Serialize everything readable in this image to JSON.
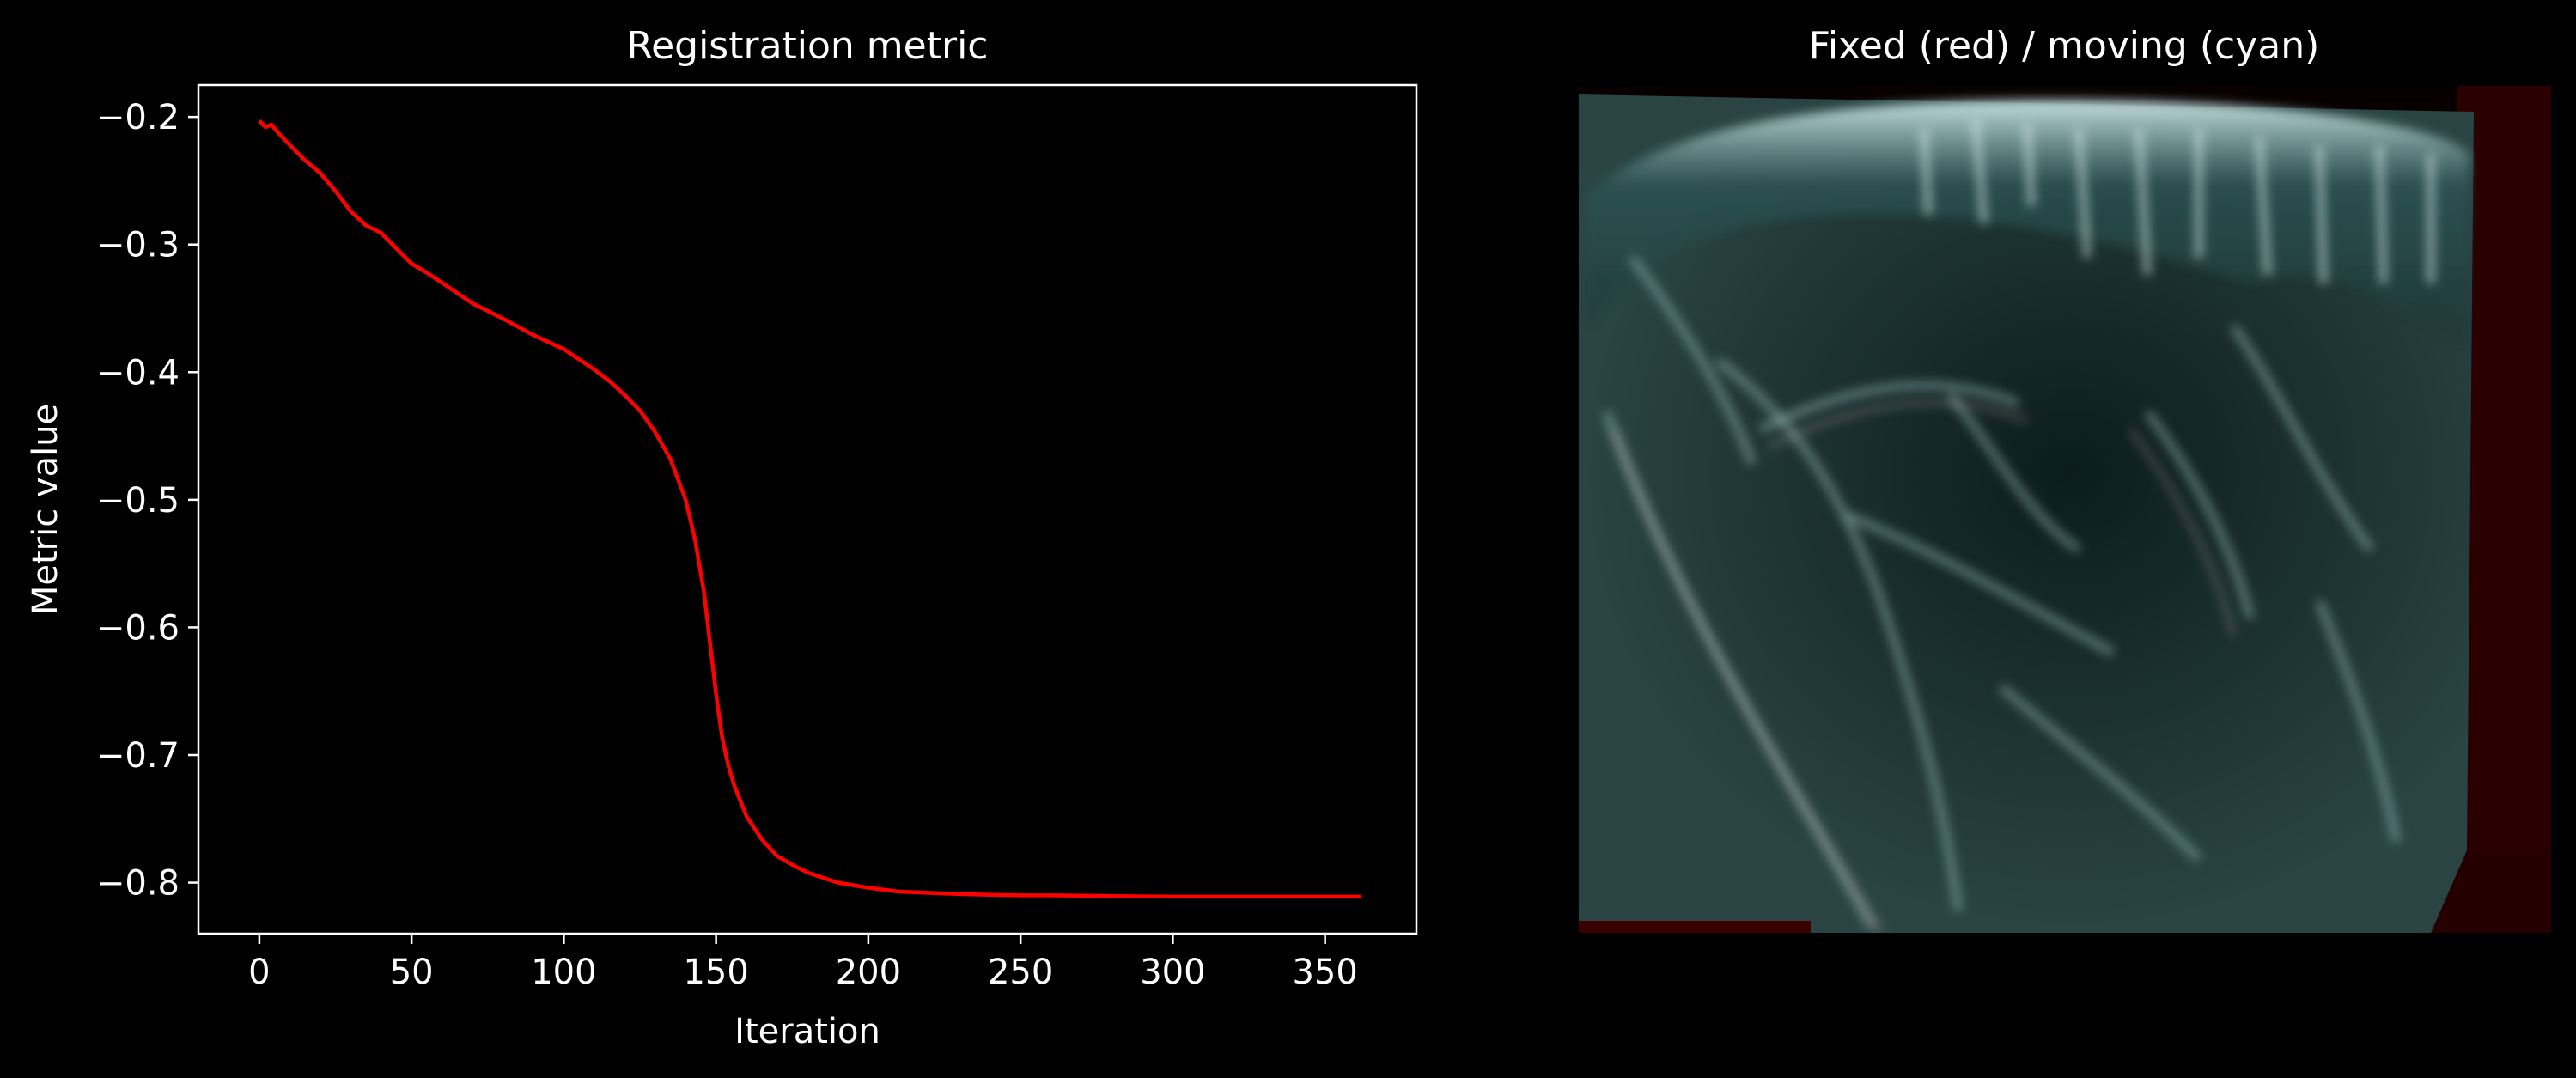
{
  "chart_data": [
    {
      "type": "line",
      "title": "Registration metric",
      "xlabel": "Iteration",
      "ylabel": "Metric value",
      "xlim": [
        -20,
        380
      ],
      "ylim": [
        -0.84,
        -0.175
      ],
      "x_ticks": [
        0,
        50,
        100,
        150,
        200,
        250,
        300,
        350
      ],
      "y_ticks": [
        -0.2,
        -0.3,
        -0.4,
        -0.5,
        -0.6,
        -0.7,
        -0.8
      ],
      "grid": false,
      "legend": "none",
      "series": [
        {
          "color": "#ff0000",
          "x": [
            0,
            2,
            4,
            6,
            10,
            15,
            20,
            25,
            30,
            35,
            40,
            45,
            50,
            55,
            60,
            70,
            80,
            90,
            100,
            110,
            115,
            120,
            125,
            130,
            135,
            140,
            143,
            146,
            148,
            150,
            152,
            154,
            156,
            158,
            160,
            165,
            170,
            175,
            180,
            190,
            200,
            210,
            220,
            230,
            240,
            250,
            260,
            280,
            300,
            320,
            340,
            362
          ],
          "y": [
            -0.203,
            -0.208,
            -0.206,
            -0.212,
            -0.222,
            -0.234,
            -0.244,
            -0.258,
            -0.274,
            -0.285,
            -0.291,
            -0.303,
            -0.315,
            -0.322,
            -0.33,
            -0.346,
            -0.358,
            -0.371,
            -0.382,
            -0.398,
            -0.407,
            -0.418,
            -0.43,
            -0.447,
            -0.468,
            -0.5,
            -0.53,
            -0.572,
            -0.612,
            -0.652,
            -0.686,
            -0.708,
            -0.724,
            -0.736,
            -0.748,
            -0.766,
            -0.779,
            -0.786,
            -0.792,
            -0.8,
            -0.804,
            -0.807,
            -0.808,
            -0.809,
            -0.8095,
            -0.81,
            -0.81,
            -0.8105,
            -0.811,
            -0.811,
            -0.811,
            -0.811
          ]
        }
      ]
    },
    {
      "type": "image",
      "title": "Fixed (red) / moving (cyan)",
      "channels": {
        "fixed": "red",
        "moving": "cyan"
      }
    }
  ],
  "style": {
    "background": "#000000",
    "foreground": "#ffffff",
    "line_color": "#ff0000"
  }
}
